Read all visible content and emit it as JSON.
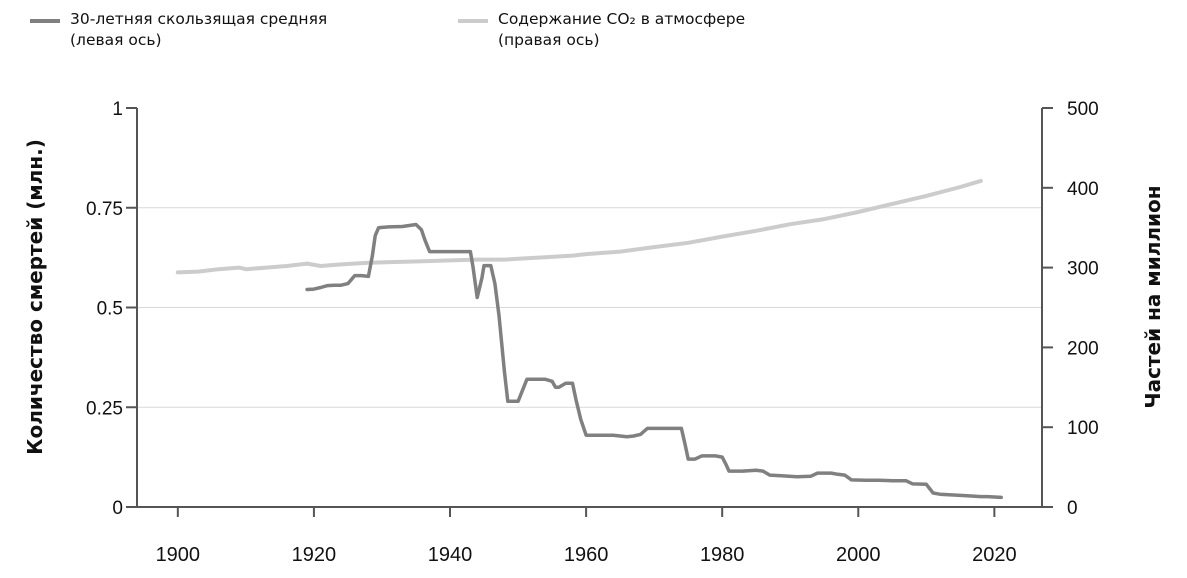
{
  "colors": {
    "deaths_line": "#808080",
    "co2_line": "#cccccc",
    "axis": "#555555",
    "grid": "#d9d9d9",
    "text": "#111111"
  },
  "chart_data": {
    "type": "line",
    "title": "",
    "xlabel": "",
    "ylabel_left": "Количество смертей (млн.)",
    "ylabel_right": "Частей на миллион",
    "xlim": [
      1894,
      2027
    ],
    "ylim_left": [
      0,
      1
    ],
    "ylim_right": [
      0,
      500
    ],
    "x_ticks": [
      "1900",
      "1920",
      "1940",
      "1960",
      "1980",
      "2000",
      "2020"
    ],
    "y_ticks_left": [
      "0",
      "0.25",
      "0.5",
      "0.75",
      "1"
    ],
    "y_ticks_right": [
      "0",
      "100",
      "200",
      "300",
      "400",
      "500"
    ],
    "grid": "horizontal",
    "legend_position": "top-left",
    "series": [
      {
        "name_line1": "30-летняя скользящая средняя",
        "name_line2": "(левая ось)",
        "axis": "left",
        "points": [
          [
            1919,
            0.545
          ],
          [
            1920,
            0.546
          ],
          [
            1921,
            0.55
          ],
          [
            1922,
            0.555
          ],
          [
            1923,
            0.556
          ],
          [
            1924,
            0.556
          ],
          [
            1925,
            0.56
          ],
          [
            1925.8,
            0.576
          ],
          [
            1926,
            0.58
          ],
          [
            1927,
            0.58
          ],
          [
            1928,
            0.578
          ],
          [
            1928.6,
            0.63
          ],
          [
            1929,
            0.68
          ],
          [
            1929.5,
            0.7
          ],
          [
            1931,
            0.702
          ],
          [
            1933,
            0.703
          ],
          [
            1935,
            0.708
          ],
          [
            1935.8,
            0.695
          ],
          [
            1936.3,
            0.67
          ],
          [
            1937,
            0.64
          ],
          [
            1938,
            0.64
          ],
          [
            1940,
            0.64
          ],
          [
            1942,
            0.64
          ],
          [
            1943,
            0.64
          ],
          [
            1943.4,
            0.6
          ],
          [
            1944,
            0.525
          ],
          [
            1944.7,
            0.575
          ],
          [
            1945,
            0.605
          ],
          [
            1946,
            0.605
          ],
          [
            1946.6,
            0.56
          ],
          [
            1947.2,
            0.48
          ],
          [
            1948,
            0.34
          ],
          [
            1948.5,
            0.265
          ],
          [
            1949,
            0.265
          ],
          [
            1950,
            0.265
          ],
          [
            1950.6,
            0.29
          ],
          [
            1951.3,
            0.32
          ],
          [
            1952,
            0.32
          ],
          [
            1954,
            0.32
          ],
          [
            1955,
            0.315
          ],
          [
            1955.5,
            0.3
          ],
          [
            1956,
            0.3
          ],
          [
            1957,
            0.31
          ],
          [
            1958,
            0.31
          ],
          [
            1958.5,
            0.27
          ],
          [
            1959.2,
            0.22
          ],
          [
            1960,
            0.18
          ],
          [
            1962,
            0.18
          ],
          [
            1964,
            0.18
          ],
          [
            1966,
            0.176
          ],
          [
            1967,
            0.178
          ],
          [
            1968,
            0.182
          ],
          [
            1969,
            0.197
          ],
          [
            1970,
            0.197
          ],
          [
            1972,
            0.197
          ],
          [
            1974,
            0.197
          ],
          [
            1974.5,
            0.16
          ],
          [
            1975,
            0.12
          ],
          [
            1976,
            0.12
          ],
          [
            1977,
            0.128
          ],
          [
            1979,
            0.128
          ],
          [
            1980,
            0.125
          ],
          [
            1980.6,
            0.105
          ],
          [
            1981,
            0.09
          ],
          [
            1983,
            0.09
          ],
          [
            1985,
            0.092
          ],
          [
            1986,
            0.09
          ],
          [
            1987,
            0.08
          ],
          [
            1989,
            0.078
          ],
          [
            1991,
            0.076
          ],
          [
            1993,
            0.077
          ],
          [
            1994,
            0.085
          ],
          [
            1996,
            0.085
          ],
          [
            1997,
            0.082
          ],
          [
            1998,
            0.08
          ],
          [
            1999,
            0.068
          ],
          [
            2001,
            0.067
          ],
          [
            2003,
            0.067
          ],
          [
            2005,
            0.066
          ],
          [
            2007,
            0.066
          ],
          [
            2008,
            0.058
          ],
          [
            2010,
            0.057
          ],
          [
            2011,
            0.035
          ],
          [
            2012,
            0.032
          ],
          [
            2014,
            0.03
          ],
          [
            2016,
            0.028
          ],
          [
            2018,
            0.026
          ],
          [
            2019,
            0.026
          ],
          [
            2020,
            0.025
          ],
          [
            2021,
            0.024
          ]
        ]
      },
      {
        "name_line1": "Содержание CO₂ в атмосфере",
        "name_line2": "(правая ось)",
        "axis": "right",
        "points": [
          [
            1900,
            294
          ],
          [
            1903,
            295
          ],
          [
            1906,
            298
          ],
          [
            1909,
            300
          ],
          [
            1910,
            298
          ],
          [
            1913,
            300
          ],
          [
            1916,
            302
          ],
          [
            1919,
            305
          ],
          [
            1921,
            302
          ],
          [
            1924,
            304
          ],
          [
            1928,
            306
          ],
          [
            1932,
            307
          ],
          [
            1936,
            308
          ],
          [
            1940,
            309
          ],
          [
            1944,
            310
          ],
          [
            1948,
            310
          ],
          [
            1950,
            311
          ],
          [
            1954,
            313
          ],
          [
            1958,
            315
          ],
          [
            1960,
            316.9
          ],
          [
            1965,
            320
          ],
          [
            1970,
            325.7
          ],
          [
            1975,
            331.1
          ],
          [
            1980,
            338.8
          ],
          [
            1985,
            346.1
          ],
          [
            1990,
            354.4
          ],
          [
            1995,
            360.8
          ],
          [
            2000,
            369.7
          ],
          [
            2005,
            379.8
          ],
          [
            2010,
            389.9
          ],
          [
            2015,
            401
          ],
          [
            2018,
            408.7
          ]
        ]
      }
    ]
  }
}
